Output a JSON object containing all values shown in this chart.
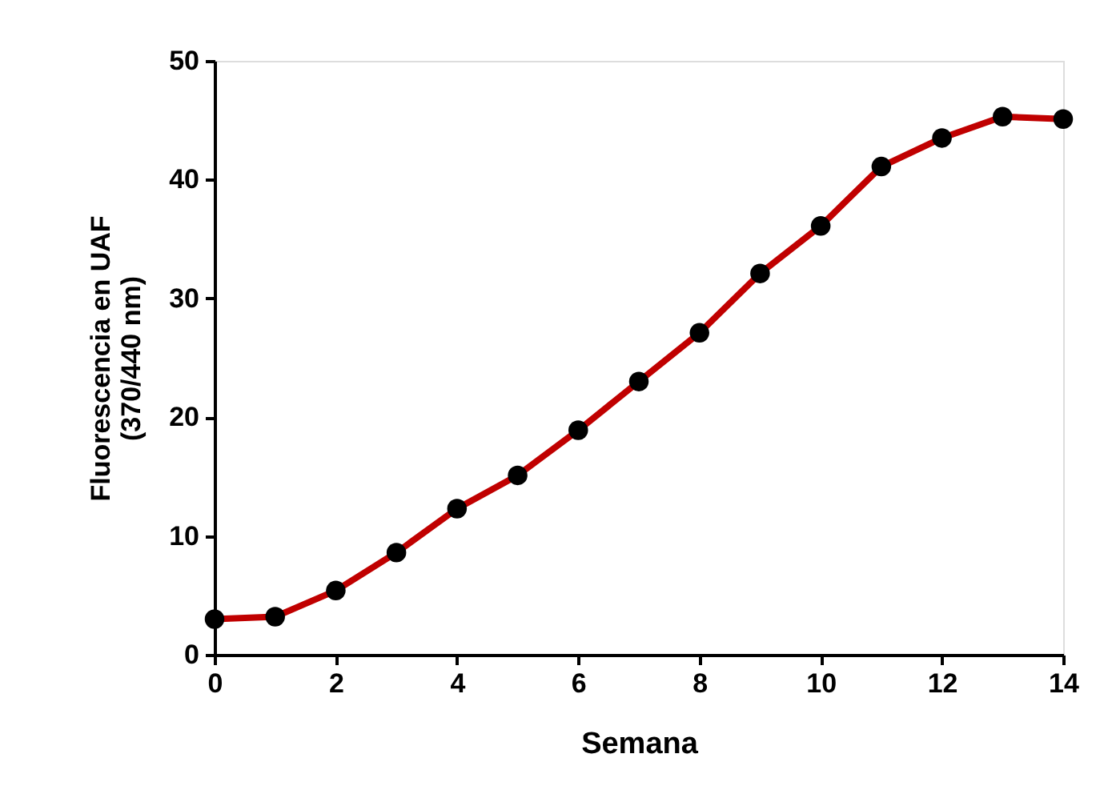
{
  "chart_data": {
    "type": "line",
    "xlabel": "Semana",
    "ylabel": "Fluorescencia en  UAF\n(370/440 nm)",
    "x": [
      0,
      1,
      2,
      3,
      4,
      5,
      6,
      7,
      8,
      9,
      10,
      11,
      12,
      13,
      14
    ],
    "series": [
      {
        "color": "#c00000",
        "values": [
          3.0,
          3.2,
          5.4,
          8.6,
          12.3,
          15.1,
          18.9,
          23.0,
          27.1,
          32.1,
          36.1,
          41.1,
          43.5,
          45.3,
          45.1
        ]
      }
    ],
    "xlim": [
      0,
      14
    ],
    "xticks": [
      0,
      2,
      4,
      6,
      8,
      10,
      12,
      14
    ],
    "ylim": [
      0,
      50
    ],
    "yticks": [
      0,
      10,
      20,
      30,
      40,
      50
    ],
    "marker": "circle",
    "line_style": "solid",
    "grid": false
  }
}
